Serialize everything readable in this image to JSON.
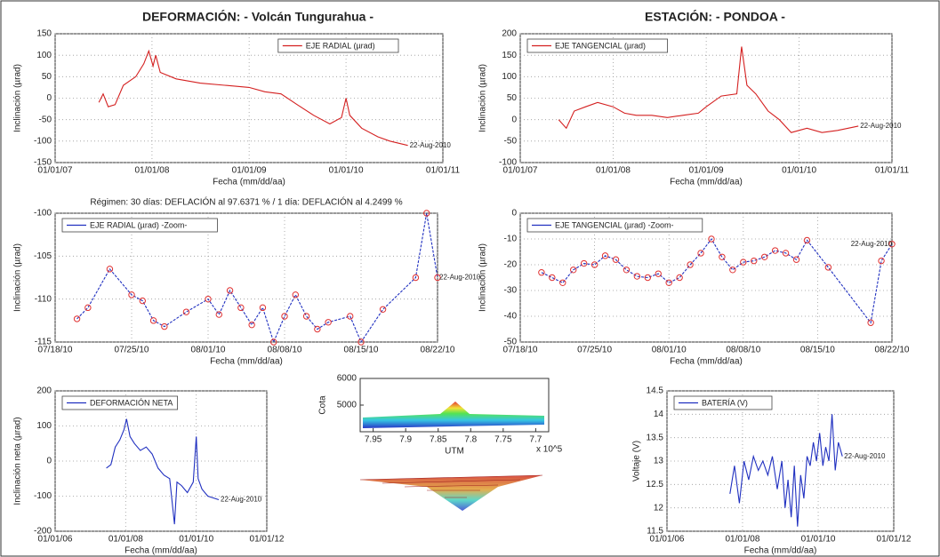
{
  "chart_data": [
    {
      "type": "line",
      "title": "DEFORMACIÓN: - Volcán Tungurahua -",
      "xlabel": "Fecha (mm/dd/aa)",
      "ylabel": "Inclinación (µrad)",
      "xlim": [
        "2007-01-01",
        "2011-01-01"
      ],
      "ylim": [
        -150,
        150
      ],
      "yticks": [
        -150,
        -100,
        -50,
        0,
        50,
        100,
        150
      ],
      "xticks": [
        {
          "value": "2007-01-01",
          "label": "01/01/07"
        },
        {
          "value": "2008-01-01",
          "label": "01/01/08"
        },
        {
          "value": "2009-01-01",
          "label": "01/01/09"
        },
        {
          "value": "2010-01-01",
          "label": "01/01/10"
        },
        {
          "value": "2011-01-01",
          "label": "01/01/11"
        }
      ],
      "grid": true,
      "legend": "upper right",
      "annotation": "22-Aug-2010",
      "x": [
        "2007-06-15",
        "2007-07-01",
        "2007-07-20",
        "2007-08-15",
        "2007-09-15",
        "2007-11-01",
        "2007-12-01",
        "2007-12-20",
        "2008-01-05",
        "2008-01-15",
        "2008-02-01",
        "2008-04-01",
        "2008-07-01",
        "2008-10-01",
        "2009-01-01",
        "2009-03-01",
        "2009-05-01",
        "2009-07-01",
        "2009-09-01",
        "2009-11-01",
        "2009-12-15",
        "2010-01-01",
        "2010-01-15",
        "2010-03-01",
        "2010-05-01",
        "2010-06-15",
        "2010-08-22"
      ],
      "series": [
        {
          "name": "EJE RADIAL (µrad)",
          "color": "#d42020",
          "values": [
            -10,
            10,
            -20,
            -15,
            30,
            50,
            80,
            110,
            75,
            100,
            60,
            45,
            35,
            30,
            25,
            15,
            10,
            -15,
            -40,
            -60,
            -45,
            0,
            -40,
            -70,
            -90,
            -100,
            -110
          ]
        }
      ]
    },
    {
      "type": "line",
      "title": "ESTACIÓN: - PONDOA -",
      "xlabel": "Fecha (mm/dd/aa)",
      "ylabel": "Inclinación (µrad)",
      "xlim": [
        "2007-01-01",
        "2011-01-01"
      ],
      "ylim": [
        -100,
        200
      ],
      "yticks": [
        -100,
        -50,
        0,
        50,
        100,
        150,
        200
      ],
      "xticks": [
        {
          "value": "2007-01-01",
          "label": "01/01/07"
        },
        {
          "value": "2008-01-01",
          "label": "01/01/08"
        },
        {
          "value": "2009-01-01",
          "label": "01/01/09"
        },
        {
          "value": "2010-01-01",
          "label": "01/01/10"
        },
        {
          "value": "2011-01-01",
          "label": "01/01/11"
        }
      ],
      "grid": true,
      "legend": "upper left",
      "annotation": "22-Aug-2010",
      "x": [
        "2007-06-01",
        "2007-07-01",
        "2007-08-01",
        "2007-09-15",
        "2007-11-01",
        "2008-01-01",
        "2008-02-15",
        "2008-04-01",
        "2008-06-01",
        "2008-08-01",
        "2008-10-01",
        "2008-12-01",
        "2009-01-01",
        "2009-03-01",
        "2009-05-01",
        "2009-05-20",
        "2009-06-10",
        "2009-07-15",
        "2009-09-01",
        "2009-10-15",
        "2009-12-01",
        "2010-02-01",
        "2010-04-01",
        "2010-06-01",
        "2010-08-22"
      ],
      "series": [
        {
          "name": "EJE TANGENCIAL (µrad)",
          "color": "#d42020",
          "values": [
            0,
            -20,
            20,
            30,
            40,
            30,
            15,
            10,
            10,
            5,
            10,
            15,
            30,
            55,
            60,
            170,
            80,
            60,
            20,
            0,
            -30,
            -20,
            -30,
            -25,
            -15
          ]
        }
      ]
    },
    {
      "type": "line",
      "title": "Régimen: 30 días: DEFLACIÓN al 97.6371 % / 1 día: DEFLACIÓN al 4.2499 %",
      "xlabel": "Fecha (mm/dd/aa)",
      "ylabel": "Inclinación (µrad)",
      "xlim": [
        "2010-07-18",
        "2010-08-22"
      ],
      "ylim": [
        -115,
        -100
      ],
      "yticks": [
        -115,
        -110,
        -105,
        -100
      ],
      "xticks": [
        {
          "value": "2010-07-18",
          "label": "07/18/10"
        },
        {
          "value": "2010-07-25",
          "label": "07/25/10"
        },
        {
          "value": "2010-08-01",
          "label": "08/01/10"
        },
        {
          "value": "2010-08-08",
          "label": "08/08/10"
        },
        {
          "value": "2010-08-15",
          "label": "08/15/10"
        },
        {
          "value": "2010-08-22",
          "label": "08/22/10"
        }
      ],
      "grid": true,
      "legend": "upper left",
      "annotation": "22-Aug-2010",
      "markers": true,
      "marker_color": "#e03030",
      "x": [
        "2010-07-20",
        "2010-07-21",
        "2010-07-23",
        "2010-07-25",
        "2010-07-26",
        "2010-07-27",
        "2010-07-28",
        "2010-07-30",
        "2010-08-01",
        "2010-08-02",
        "2010-08-03",
        "2010-08-04",
        "2010-08-05",
        "2010-08-06",
        "2010-08-07",
        "2010-08-08",
        "2010-08-09",
        "2010-08-10",
        "2010-08-11",
        "2010-08-12",
        "2010-08-14",
        "2010-08-15",
        "2010-08-17",
        "2010-08-20",
        "2010-08-21",
        "2010-08-22"
      ],
      "series": [
        {
          "name": "EJE RADIAL (µrad) -Zoom-",
          "color": "#2030c0",
          "values": [
            -112.3,
            -111,
            -106.5,
            -109.5,
            -110.2,
            -112.5,
            -113.2,
            -111.5,
            -110,
            -111.8,
            -109,
            -111,
            -113,
            -111,
            -115,
            -112,
            -109.5,
            -112,
            -113.5,
            -112.7,
            -112,
            -115,
            -111.2,
            -107.5,
            -100,
            -107.5
          ]
        }
      ]
    },
    {
      "type": "line",
      "xlabel": "Fecha (mm/dd/aa)",
      "ylabel": "Inclinación (µrad)",
      "xlim": [
        "2010-07-18",
        "2010-08-22"
      ],
      "ylim": [
        -50,
        0
      ],
      "yticks": [
        -50,
        -40,
        -30,
        -20,
        -10,
        0
      ],
      "xticks": [
        {
          "value": "2010-07-18",
          "label": "07/18/10"
        },
        {
          "value": "2010-07-25",
          "label": "07/25/10"
        },
        {
          "value": "2010-08-01",
          "label": "08/01/10"
        },
        {
          "value": "2010-08-08",
          "label": "08/08/10"
        },
        {
          "value": "2010-08-15",
          "label": "08/15/10"
        },
        {
          "value": "2010-08-22",
          "label": "08/22/10"
        }
      ],
      "grid": true,
      "legend": "upper left",
      "annotation": "22-Aug-2010",
      "markers": true,
      "marker_color": "#e03030",
      "x": [
        "2010-07-20",
        "2010-07-21",
        "2010-07-22",
        "2010-07-23",
        "2010-07-24",
        "2010-07-25",
        "2010-07-26",
        "2010-07-27",
        "2010-07-28",
        "2010-07-29",
        "2010-07-30",
        "2010-07-31",
        "2010-08-01",
        "2010-08-02",
        "2010-08-03",
        "2010-08-04",
        "2010-08-05",
        "2010-08-06",
        "2010-08-07",
        "2010-08-08",
        "2010-08-09",
        "2010-08-10",
        "2010-08-11",
        "2010-08-12",
        "2010-08-13",
        "2010-08-14",
        "2010-08-16",
        "2010-08-20",
        "2010-08-21",
        "2010-08-22"
      ],
      "series": [
        {
          "name": "EJE TANGENCIAL (µrad) -Zoom-",
          "color": "#2030c0",
          "values": [
            -23,
            -25,
            -27,
            -22,
            -19.5,
            -20,
            -16.5,
            -18,
            -22,
            -24.5,
            -25,
            -23.5,
            -27,
            -25,
            -20,
            -15.5,
            -10,
            -17,
            -22,
            -19,
            -18.5,
            -17,
            -14.5,
            -15.5,
            -18,
            -10.5,
            -21,
            -42.5,
            -18.5,
            -12
          ]
        }
      ]
    },
    {
      "type": "line",
      "xlabel": "Fecha (mm/dd/aa)",
      "ylabel": "Inclinación neta (µrad)",
      "xlim": [
        "2006-01-01",
        "2012-01-01"
      ],
      "ylim": [
        -200,
        200
      ],
      "yticks": [
        -200,
        -100,
        0,
        100,
        200
      ],
      "xticks": [
        {
          "value": "2006-01-01",
          "label": "01/01/06"
        },
        {
          "value": "2008-01-01",
          "label": "01/01/08"
        },
        {
          "value": "2010-01-01",
          "label": "01/01/10"
        },
        {
          "value": "2012-01-01",
          "label": "01/01/12"
        }
      ],
      "grid": true,
      "legend": "upper left",
      "annotation": "22-Aug-2010",
      "x": [
        "2007-06-15",
        "2007-08-01",
        "2007-09-15",
        "2007-11-01",
        "2007-12-15",
        "2008-01-10",
        "2008-02-15",
        "2008-04-01",
        "2008-06-01",
        "2008-08-01",
        "2008-10-01",
        "2008-12-01",
        "2009-02-01",
        "2009-04-01",
        "2009-05-20",
        "2009-06-15",
        "2009-08-01",
        "2009-10-01",
        "2009-12-01",
        "2010-01-01",
        "2010-01-20",
        "2010-03-01",
        "2010-05-01",
        "2010-08-22"
      ],
      "series": [
        {
          "name": "DEFORMACIÓN NETA",
          "color": "#2030c0",
          "values": [
            -20,
            -10,
            40,
            60,
            90,
            120,
            70,
            50,
            30,
            40,
            20,
            -20,
            -40,
            -50,
            -180,
            -60,
            -70,
            -90,
            -60,
            70,
            -50,
            -80,
            -100,
            -110
          ]
        }
      ]
    },
    {
      "type": "surface",
      "xlabel": "UTM",
      "ylabel": "Cota",
      "x_multiplier": "x 10^5",
      "xlim": [
        7.97,
        7.68
      ],
      "ylim": [
        4000,
        6000
      ],
      "yticks": [
        5000,
        6000
      ],
      "xticks": [
        7.95,
        7.9,
        7.85,
        7.8,
        7.75,
        7.7
      ]
    },
    {
      "type": "line",
      "xlabel": "Fecha (mm/dd/aa)",
      "ylabel": "Voltaje (V)",
      "xlim": [
        "2006-01-01",
        "2012-01-01"
      ],
      "ylim": [
        11.5,
        14.5
      ],
      "yticks": [
        11.5,
        12,
        12.5,
        13,
        13.5,
        14,
        14.5
      ],
      "xticks": [
        {
          "value": "2006-01-01",
          "label": "01/01/06"
        },
        {
          "value": "2008-01-01",
          "label": "01/01/08"
        },
        {
          "value": "2010-01-01",
          "label": "01/01/10"
        },
        {
          "value": "2012-01-01",
          "label": "01/01/12"
        }
      ],
      "grid": true,
      "legend": "upper left",
      "annotation": "22-Aug-2010",
      "x": [
        "2007-09-01",
        "2007-10-15",
        "2007-12-01",
        "2008-01-15",
        "2008-03-01",
        "2008-04-15",
        "2008-06-01",
        "2008-07-15",
        "2008-09-01",
        "2008-10-15",
        "2008-12-01",
        "2009-01-15",
        "2009-02-15",
        "2009-03-15",
        "2009-04-15",
        "2009-05-15",
        "2009-06-15",
        "2009-07-15",
        "2009-08-15",
        "2009-09-15",
        "2009-10-15",
        "2009-11-15",
        "2009-12-15",
        "2010-01-15",
        "2010-02-15",
        "2010-03-15",
        "2010-04-15",
        "2010-05-15",
        "2010-06-15",
        "2010-07-15",
        "2010-08-22"
      ],
      "series": [
        {
          "name": "BATERÍA (V)",
          "color": "#2030c0",
          "values": [
            12.3,
            12.9,
            12.1,
            13.0,
            12.6,
            13.1,
            12.8,
            13.0,
            12.7,
            13.1,
            12.4,
            13.0,
            12.0,
            12.6,
            11.8,
            12.9,
            11.6,
            12.7,
            12.2,
            13.1,
            12.9,
            13.4,
            13.0,
            13.6,
            12.9,
            13.3,
            13.0,
            14.0,
            12.8,
            13.4,
            13.1
          ]
        }
      ]
    }
  ]
}
